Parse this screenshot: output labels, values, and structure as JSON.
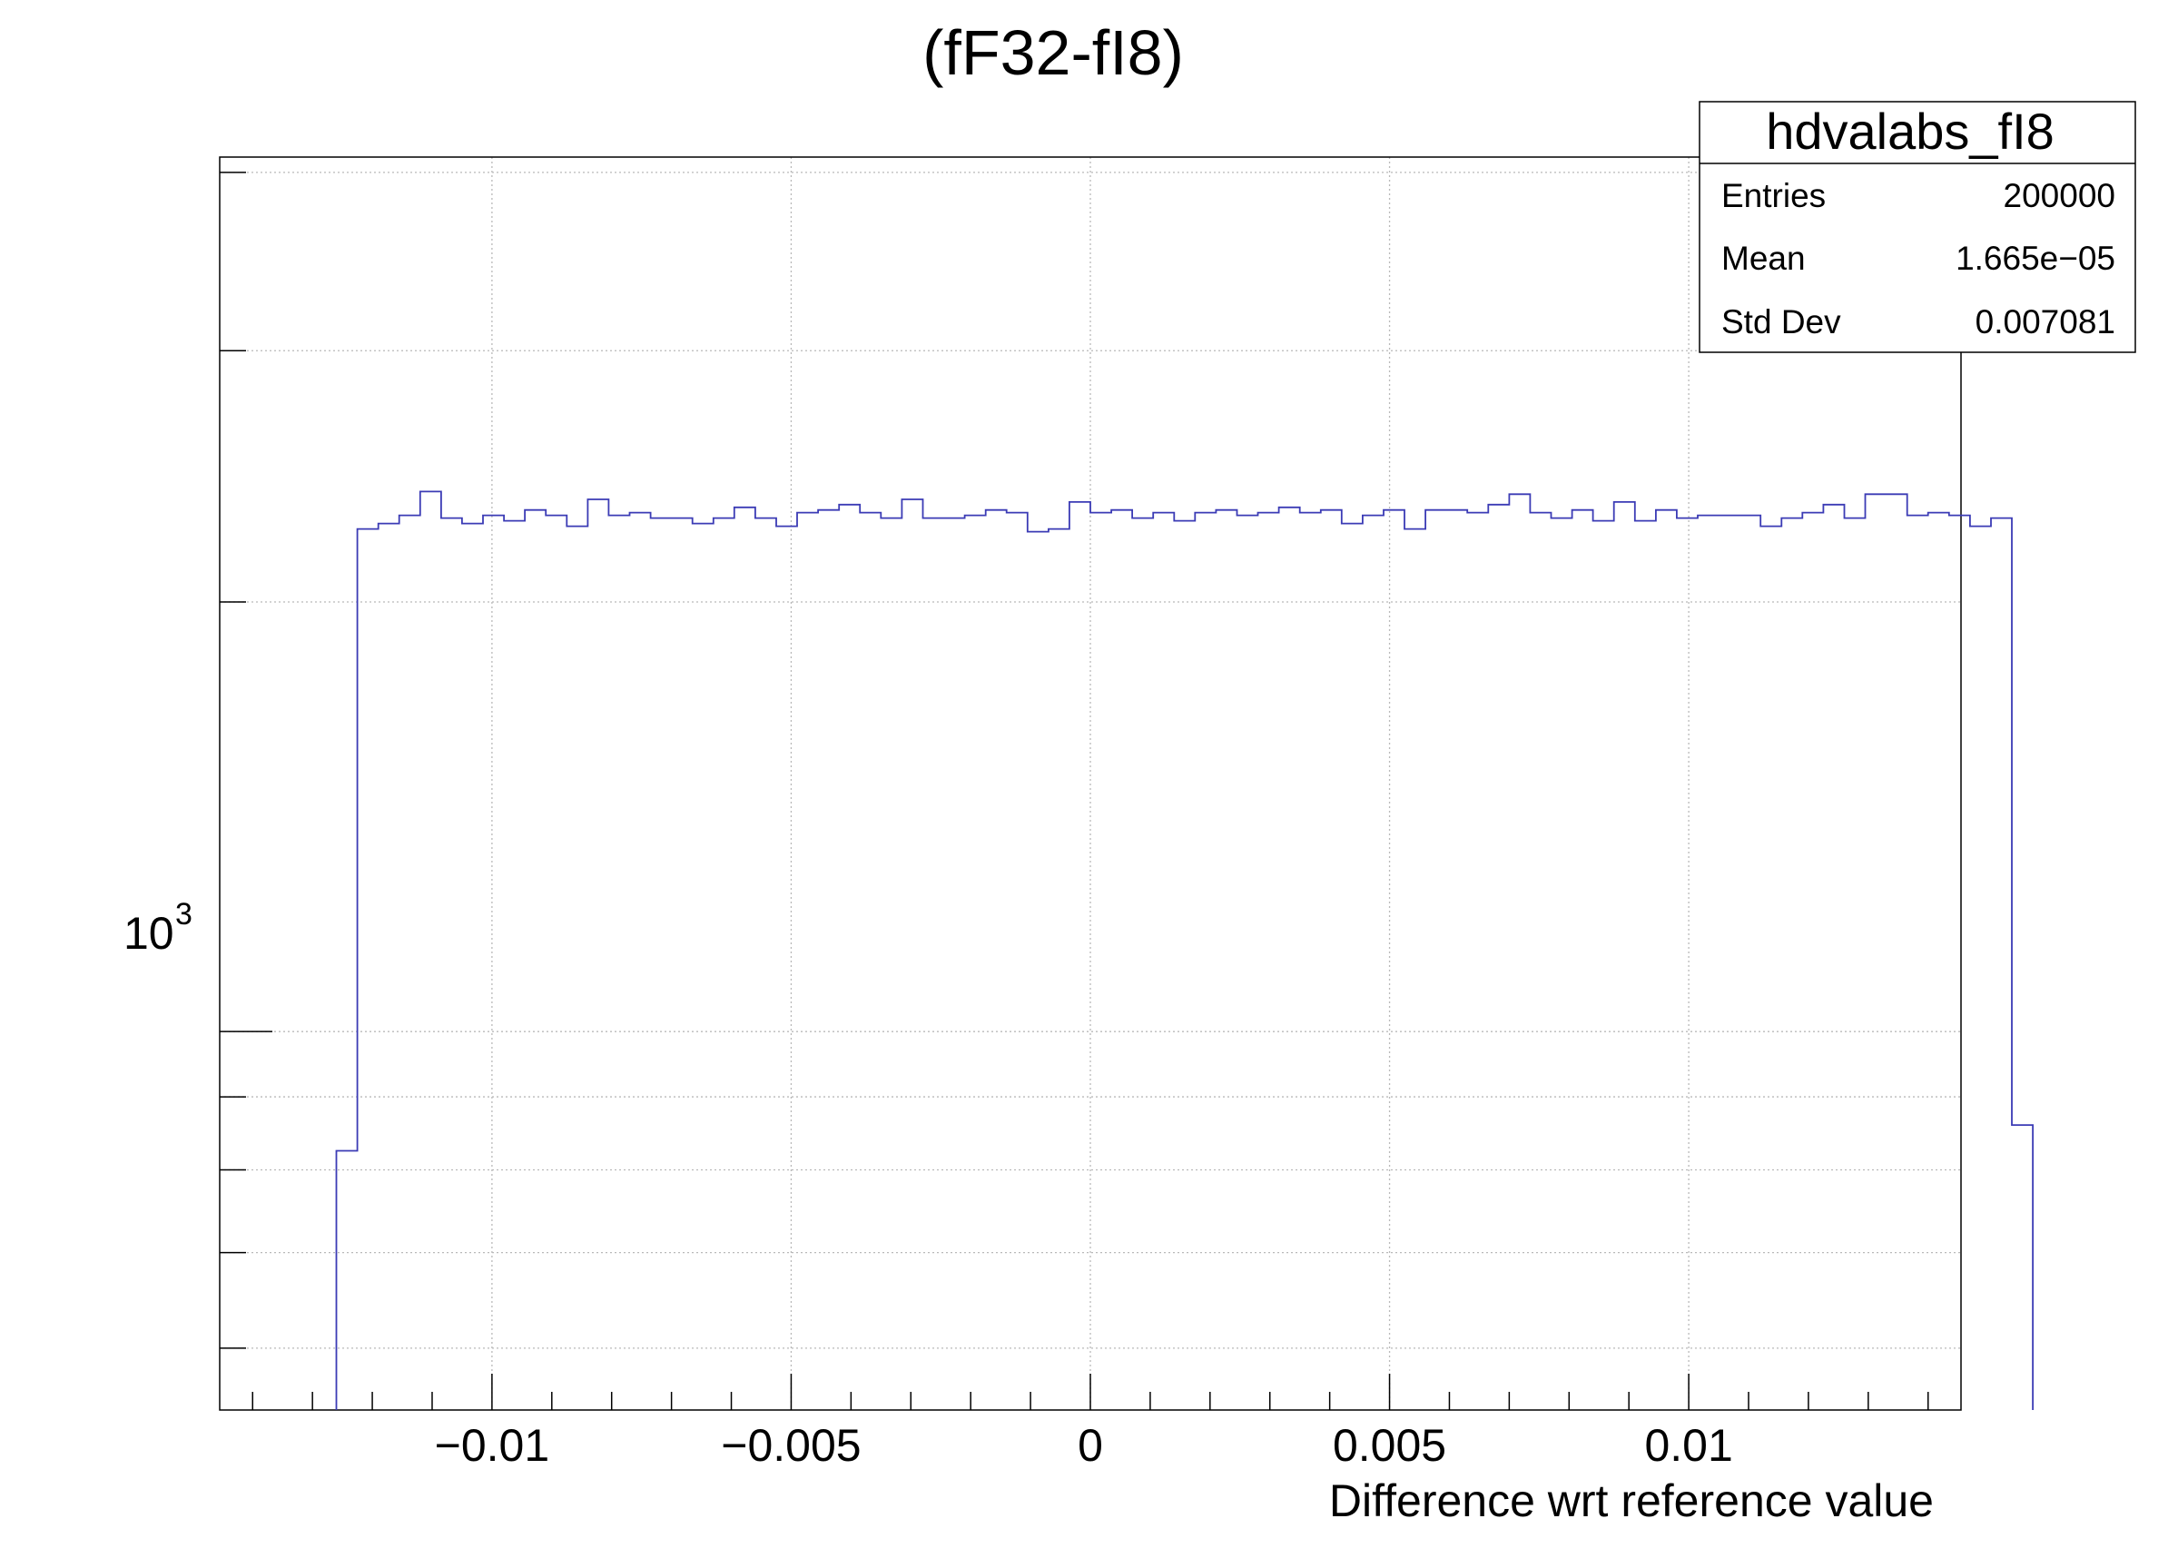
{
  "chart_data": {
    "type": "histogram",
    "title": "(fF32-fI8)",
    "xlabel": "Difference wrt reference value",
    "ylabel": "",
    "xlim": [
      -0.01455,
      0.01455
    ],
    "ylim": [
      543,
      4100
    ],
    "y_scale": "log",
    "grid": true,
    "line_color": "#3b3bb5",
    "x_ticks": [
      -0.01,
      -0.005,
      0,
      0.005,
      0.01
    ],
    "x_tick_labels": [
      "−0.01",
      "−0.005",
      "0",
      "0.005",
      "0.01"
    ],
    "y_tick_label": {
      "base": "10",
      "exponent": "3",
      "value": 1000
    },
    "bin_width": 0.00035,
    "bin_edges_start": -0.0126,
    "values": [
      825,
      2250,
      2270,
      2300,
      2390,
      2290,
      2270,
      2300,
      2280,
      2320,
      2300,
      2260,
      2360,
      2300,
      2310,
      2290,
      2290,
      2270,
      2290,
      2330,
      2290,
      2260,
      2310,
      2320,
      2340,
      2310,
      2290,
      2360,
      2290,
      2290,
      2300,
      2320,
      2310,
      2240,
      2250,
      2350,
      2310,
      2320,
      2290,
      2310,
      2280,
      2310,
      2320,
      2300,
      2310,
      2330,
      2310,
      2320,
      2270,
      2300,
      2320,
      2250,
      2320,
      2320,
      2310,
      2340,
      2380,
      2310,
      2290,
      2320,
      2280,
      2350,
      2280,
      2320,
      2290,
      2300,
      2300,
      2300,
      2260,
      2290,
      2310,
      2340,
      2290,
      2380,
      2380,
      2300,
      2310,
      2300,
      2260,
      2290,
      860
    ]
  },
  "stats": {
    "name": "hdvalabs_fI8",
    "rows": [
      {
        "label": "Entries",
        "value": "200000"
      },
      {
        "label": "Mean",
        "value": "1.665e−05"
      },
      {
        "label": "Std Dev",
        "value": "0.007081"
      }
    ]
  }
}
